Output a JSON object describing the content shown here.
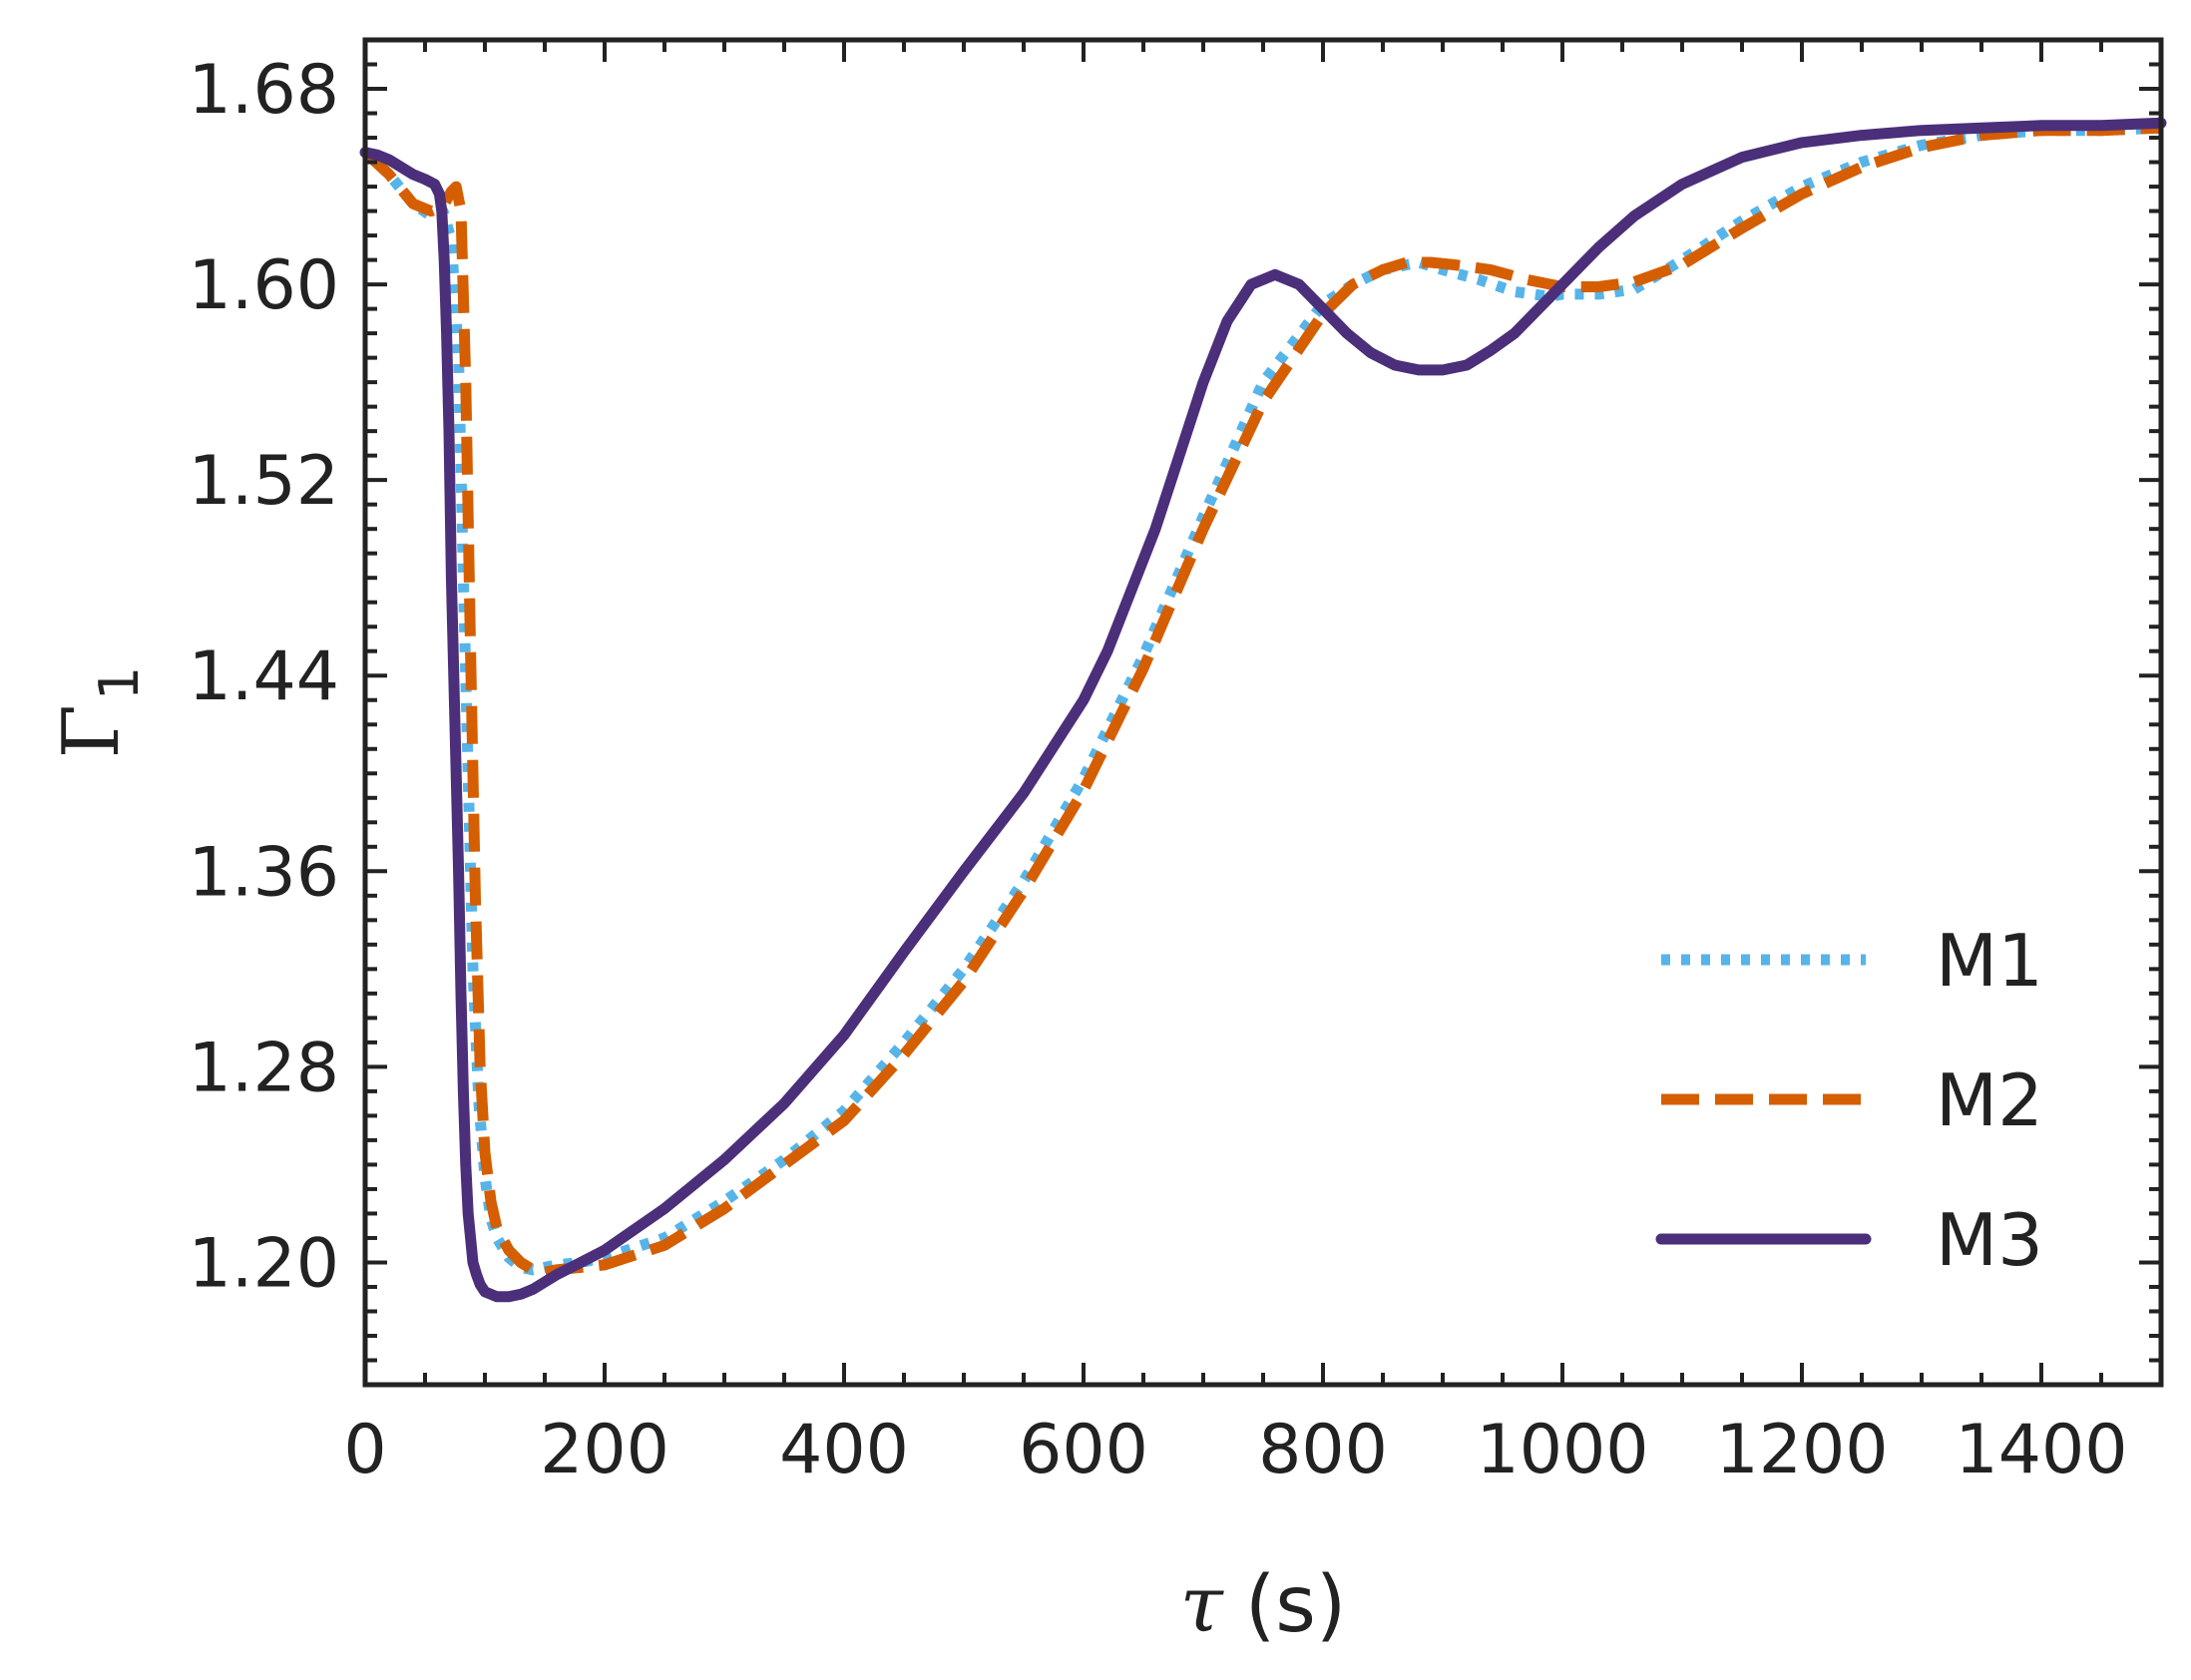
{
  "chart_data": {
    "type": "line",
    "title": "",
    "xlabel": "τ (s)",
    "ylabel": "Γ₁",
    "xlabel_parts": {
      "symbol": "τ",
      "unit": "(s)"
    },
    "ylabel_parts": {
      "symbol": "Γ",
      "subscript": "1"
    },
    "xlim": [
      0,
      1500
    ],
    "ylim": [
      1.15,
      1.7
    ],
    "xticks": [
      0,
      200,
      400,
      600,
      800,
      1000,
      1200,
      1400
    ],
    "xtick_labels": [
      "0",
      "200",
      "400",
      "600",
      "800",
      "1000",
      "1200",
      "1400"
    ],
    "yticks": [
      1.2,
      1.28,
      1.36,
      1.44,
      1.52,
      1.6,
      1.68
    ],
    "ytick_labels": [
      "1.20",
      "1.28",
      "1.36",
      "1.44",
      "1.52",
      "1.60",
      "1.68"
    ],
    "grid": false,
    "legend_position": "lower-right",
    "series": [
      {
        "name": "M1",
        "style": "dotted",
        "color": "#56B4E9",
        "x": [
          0,
          20,
          40,
          55,
          65,
          72,
          78,
          82,
          86,
          90,
          95,
          100,
          105,
          110,
          120,
          130,
          140,
          150,
          160,
          180,
          200,
          250,
          300,
          350,
          400,
          450,
          500,
          550,
          600,
          650,
          700,
          750,
          800,
          825,
          850,
          880,
          900,
          930,
          960,
          990,
          1000,
          1030,
          1060,
          1100,
          1150,
          1200,
          1250,
          1300,
          1350,
          1400,
          1450,
          1500
        ],
        "y": [
          1.654,
          1.645,
          1.633,
          1.628,
          1.63,
          1.618,
          1.57,
          1.48,
          1.4,
          1.32,
          1.265,
          1.235,
          1.218,
          1.21,
          1.202,
          1.198,
          1.197,
          1.198,
          1.199,
          1.2,
          1.202,
          1.21,
          1.225,
          1.242,
          1.262,
          1.29,
          1.32,
          1.356,
          1.398,
          1.448,
          1.505,
          1.56,
          1.592,
          1.6,
          1.606,
          1.609,
          1.606,
          1.602,
          1.597,
          1.595,
          1.596,
          1.596,
          1.598,
          1.61,
          1.626,
          1.64,
          1.65,
          1.657,
          1.661,
          1.663,
          1.663,
          1.664
        ]
      },
      {
        "name": "M2",
        "style": "dashed",
        "color": "#D55E00",
        "x": [
          0,
          20,
          40,
          55,
          65,
          72,
          76,
          80,
          84,
          88,
          92,
          96,
          100,
          105,
          110,
          120,
          130,
          140,
          150,
          160,
          180,
          200,
          250,
          300,
          350,
          400,
          450,
          500,
          550,
          600,
          650,
          700,
          750,
          800,
          825,
          850,
          870,
          890,
          910,
          940,
          970,
          1000,
          1030,
          1060,
          1100,
          1150,
          1200,
          1250,
          1300,
          1350,
          1400,
          1450,
          1500
        ],
        "y": [
          1.654,
          1.645,
          1.633,
          1.63,
          1.632,
          1.638,
          1.64,
          1.63,
          1.56,
          1.45,
          1.35,
          1.28,
          1.245,
          1.225,
          1.214,
          1.205,
          1.2,
          1.197,
          1.196,
          1.197,
          1.198,
          1.199,
          1.207,
          1.222,
          1.24,
          1.258,
          1.285,
          1.315,
          1.352,
          1.393,
          1.443,
          1.5,
          1.552,
          1.588,
          1.6,
          1.606,
          1.609,
          1.609,
          1.608,
          1.606,
          1.602,
          1.599,
          1.599,
          1.601,
          1.608,
          1.623,
          1.637,
          1.648,
          1.656,
          1.661,
          1.663,
          1.663,
          1.664
        ]
      },
      {
        "name": "M3",
        "style": "solid",
        "color": "#4B2F7A",
        "x": [
          0,
          10,
          20,
          30,
          40,
          50,
          58,
          62,
          64,
          66,
          68,
          70,
          72,
          75,
          78,
          80,
          82,
          84,
          86,
          88,
          90,
          93,
          96,
          100,
          105,
          110,
          120,
          130,
          140,
          150,
          160,
          180,
          200,
          250,
          300,
          350,
          400,
          450,
          500,
          550,
          600,
          620,
          640,
          660,
          680,
          700,
          720,
          740,
          760,
          780,
          800,
          820,
          840,
          860,
          880,
          900,
          920,
          940,
          960,
          980,
          1000,
          1030,
          1060,
          1100,
          1150,
          1200,
          1250,
          1300,
          1350,
          1400,
          1450,
          1500
        ],
        "y": [
          1.654,
          1.653,
          1.651,
          1.648,
          1.645,
          1.643,
          1.641,
          1.637,
          1.63,
          1.61,
          1.58,
          1.54,
          1.48,
          1.42,
          1.36,
          1.31,
          1.27,
          1.24,
          1.22,
          1.21,
          1.2,
          1.195,
          1.191,
          1.188,
          1.187,
          1.186,
          1.186,
          1.187,
          1.189,
          1.192,
          1.195,
          1.2,
          1.205,
          1.222,
          1.242,
          1.265,
          1.293,
          1.327,
          1.36,
          1.392,
          1.43,
          1.45,
          1.475,
          1.5,
          1.53,
          1.56,
          1.585,
          1.6,
          1.604,
          1.6,
          1.59,
          1.58,
          1.572,
          1.567,
          1.565,
          1.565,
          1.567,
          1.573,
          1.58,
          1.59,
          1.6,
          1.615,
          1.628,
          1.641,
          1.652,
          1.658,
          1.661,
          1.663,
          1.664,
          1.665,
          1.665,
          1.666
        ]
      }
    ]
  }
}
